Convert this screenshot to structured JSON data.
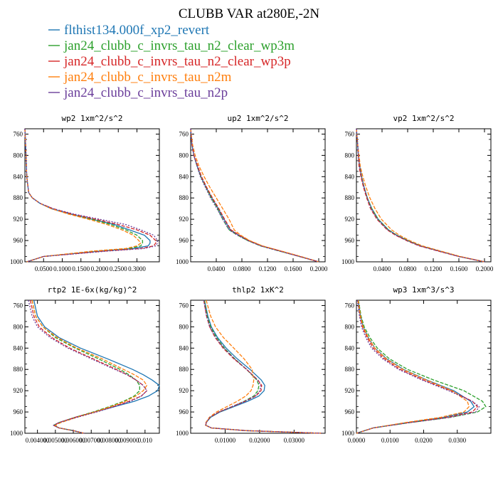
{
  "figure": {
    "title": "CLUBB VAR at280E,-2N",
    "legend": [
      {
        "label": "flthist134.000f_xp2_revert",
        "color": "#1f77b4"
      },
      {
        "label": "jan24_clubb_c_invrs_tau_n2_clear_wp3m",
        "color": "#2ca02c"
      },
      {
        "label": "jan24_clubb_c_invrs_tau_n2_clear_wp3p",
        "color": "#d62728"
      },
      {
        "label": "jan24_clubb_c_invrs_tau_n2m",
        "color": "#ff7f0e"
      },
      {
        "label": "jan24_clubb_c_invrs_tau_n2p",
        "color": "#6a3d9a"
      }
    ]
  },
  "chart_data": [
    {
      "type": "line",
      "title": "wp2   1xm^2/s^2",
      "xlim": [
        0,
        0.36
      ],
      "ylim": [
        1000,
        750
      ],
      "xticks": [
        0.05,
        0.1,
        0.15,
        0.2,
        0.25,
        0.3
      ],
      "xtick_labels": [
        "0.0500",
        "0.1000",
        "0.1500",
        "0.2000",
        "0.2500",
        "0.3000"
      ],
      "yticks": [
        760,
        800,
        840,
        880,
        920,
        960,
        1000
      ],
      "ytick_labels": [
        "760",
        "800",
        "840",
        "880",
        "920",
        "960",
        "1000"
      ],
      "y": [
        750,
        800,
        840,
        870,
        880,
        890,
        900,
        910,
        920,
        930,
        940,
        950,
        960,
        965,
        970,
        975,
        980,
        990,
        1000
      ],
      "series": [
        {
          "values": [
            0,
            0.003,
            0.005,
            0.01,
            0.02,
            0.04,
            0.07,
            0.12,
            0.18,
            0.24,
            0.28,
            0.32,
            0.335,
            0.335,
            0.33,
            0.29,
            0.2,
            0.05,
            0.005
          ],
          "color": "#1f77b4",
          "dash": ""
        },
        {
          "values": [
            0,
            0.003,
            0.005,
            0.01,
            0.02,
            0.04,
            0.07,
            0.12,
            0.18,
            0.23,
            0.27,
            0.3,
            0.315,
            0.315,
            0.31,
            0.28,
            0.19,
            0.05,
            0.005
          ],
          "color": "#2ca02c",
          "dash": "5,2"
        },
        {
          "values": [
            0,
            0.003,
            0.005,
            0.01,
            0.02,
            0.04,
            0.075,
            0.125,
            0.19,
            0.25,
            0.3,
            0.335,
            0.35,
            0.35,
            0.345,
            0.31,
            0.21,
            0.05,
            0.005
          ],
          "color": "#d62728",
          "dash": "5,2"
        },
        {
          "values": [
            0,
            0.003,
            0.005,
            0.01,
            0.02,
            0.04,
            0.07,
            0.115,
            0.17,
            0.22,
            0.26,
            0.29,
            0.305,
            0.31,
            0.3,
            0.27,
            0.18,
            0.05,
            0.005
          ],
          "color": "#ff7f0e",
          "dash": "5,2"
        },
        {
          "values": [
            0,
            0.003,
            0.005,
            0.01,
            0.02,
            0.04,
            0.075,
            0.13,
            0.2,
            0.27,
            0.31,
            0.345,
            0.355,
            0.355,
            0.35,
            0.32,
            0.22,
            0.05,
            0.005
          ],
          "color": "#6a3d9a",
          "dash": "2,2"
        }
      ]
    },
    {
      "type": "line",
      "title": "up2   1xm^2/s^2",
      "xlim": [
        0,
        0.21
      ],
      "ylim": [
        1000,
        750
      ],
      "xticks": [
        0.04,
        0.08,
        0.12,
        0.16,
        0.2
      ],
      "xtick_labels": [
        "0.0400",
        "0.0800",
        "0.1200",
        "0.1600",
        "0.2000"
      ],
      "yticks": [
        760,
        800,
        840,
        880,
        920,
        960,
        1000
      ],
      "ytick_labels": [
        "760",
        "800",
        "840",
        "880",
        "920",
        "960",
        "1000"
      ],
      "y": [
        750,
        780,
        800,
        820,
        840,
        860,
        880,
        900,
        920,
        940,
        950,
        960,
        970,
        980,
        990,
        1000
      ],
      "series": [
        {
          "values": [
            0,
            0.002,
            0.005,
            0.01,
            0.016,
            0.024,
            0.033,
            0.043,
            0.052,
            0.062,
            0.075,
            0.09,
            0.11,
            0.14,
            0.17,
            0.2
          ],
          "color": "#1f77b4",
          "dash": ""
        },
        {
          "values": [
            0,
            0.002,
            0.005,
            0.01,
            0.016,
            0.024,
            0.032,
            0.042,
            0.05,
            0.06,
            0.073,
            0.089,
            0.109,
            0.139,
            0.17,
            0.2
          ],
          "color": "#2ca02c",
          "dash": "5,2"
        },
        {
          "values": [
            0,
            0.002,
            0.005,
            0.011,
            0.017,
            0.025,
            0.034,
            0.044,
            0.053,
            0.063,
            0.076,
            0.091,
            0.111,
            0.141,
            0.17,
            0.2
          ],
          "color": "#d62728",
          "dash": "5,2"
        },
        {
          "values": [
            0,
            0.003,
            0.007,
            0.013,
            0.021,
            0.03,
            0.04,
            0.05,
            0.06,
            0.068,
            0.078,
            0.092,
            0.112,
            0.142,
            0.172,
            0.2
          ],
          "color": "#ff7f0e",
          "dash": "5,2"
        },
        {
          "values": [
            0,
            0.002,
            0.005,
            0.01,
            0.015,
            0.023,
            0.031,
            0.041,
            0.05,
            0.06,
            0.073,
            0.089,
            0.109,
            0.139,
            0.17,
            0.2
          ],
          "color": "#6a3d9a",
          "dash": "2,2"
        }
      ]
    },
    {
      "type": "line",
      "title": "vp2   1xm^2/s^2",
      "xlim": [
        0,
        0.21
      ],
      "ylim": [
        1000,
        750
      ],
      "xticks": [
        0.04,
        0.08,
        0.12,
        0.16,
        0.2
      ],
      "xtick_labels": [
        "0.0400",
        "0.0800",
        "0.1200",
        "0.1600",
        "0.2000"
      ],
      "yticks": [
        760,
        800,
        840,
        880,
        920,
        960,
        1000
      ],
      "ytick_labels": [
        "760",
        "800",
        "840",
        "880",
        "920",
        "960",
        "1000"
      ],
      "y": [
        750,
        780,
        800,
        820,
        840,
        860,
        880,
        900,
        920,
        940,
        950,
        960,
        970,
        980,
        990,
        1000
      ],
      "series": [
        {
          "values": [
            0,
            0.002,
            0.003,
            0.005,
            0.008,
            0.012,
            0.017,
            0.024,
            0.034,
            0.05,
            0.063,
            0.08,
            0.1,
            0.13,
            0.16,
            0.2
          ],
          "color": "#1f77b4",
          "dash": ""
        },
        {
          "values": [
            0,
            0.002,
            0.003,
            0.005,
            0.008,
            0.012,
            0.017,
            0.024,
            0.034,
            0.05,
            0.063,
            0.08,
            0.1,
            0.13,
            0.16,
            0.2
          ],
          "color": "#2ca02c",
          "dash": "5,2"
        },
        {
          "values": [
            0,
            0.002,
            0.003,
            0.004,
            0.007,
            0.011,
            0.016,
            0.022,
            0.032,
            0.048,
            0.061,
            0.078,
            0.098,
            0.128,
            0.16,
            0.2
          ],
          "color": "#d62728",
          "dash": "5,2"
        },
        {
          "values": [
            0,
            0.002,
            0.004,
            0.006,
            0.01,
            0.015,
            0.021,
            0.029,
            0.039,
            0.055,
            0.067,
            0.083,
            0.103,
            0.132,
            0.162,
            0.2
          ],
          "color": "#ff7f0e",
          "dash": "5,2"
        },
        {
          "values": [
            0,
            0.002,
            0.003,
            0.005,
            0.008,
            0.012,
            0.017,
            0.023,
            0.033,
            0.049,
            0.062,
            0.079,
            0.099,
            0.129,
            0.16,
            0.2
          ],
          "color": "#6a3d9a",
          "dash": "2,2"
        }
      ]
    },
    {
      "type": "line",
      "title": "rtp2   1E-6x(kg/kg)^2",
      "xlim": [
        0.0033,
        0.0108
      ],
      "ylim": [
        1000,
        750
      ],
      "xticks": [
        0.004,
        0.005,
        0.006,
        0.007,
        0.008,
        0.009,
        0.01
      ],
      "xtick_labels": [
        "0.004000",
        "0.005000",
        "0.006000",
        "0.007000",
        "0.008000",
        "0.009000",
        "0.010"
      ],
      "yticks": [
        760,
        800,
        840,
        880,
        920,
        960,
        1000
      ],
      "ytick_labels": [
        "760",
        "800",
        "840",
        "880",
        "920",
        "960",
        "1000"
      ],
      "y": [
        750,
        780,
        800,
        820,
        840,
        860,
        880,
        890,
        900,
        910,
        920,
        930,
        940,
        950,
        960,
        970,
        980,
        985,
        990,
        995,
        1000
      ],
      "series": [
        {
          "values": [
            0.0038,
            0.004,
            0.0044,
            0.0052,
            0.0064,
            0.0079,
            0.0093,
            0.0099,
            0.0104,
            0.0108,
            0.0107,
            0.0102,
            0.0094,
            0.0083,
            0.0072,
            0.0061,
            0.0052,
            0.0049,
            0.0052,
            0.006,
            0.0066
          ],
          "color": "#1f77b4",
          "dash": ""
        },
        {
          "values": [
            0.0037,
            0.0039,
            0.0043,
            0.005,
            0.0061,
            0.0074,
            0.0086,
            0.0091,
            0.0095,
            0.0097,
            0.0097,
            0.0094,
            0.0088,
            0.008,
            0.0071,
            0.0061,
            0.0052,
            0.0049,
            0.0052,
            0.006,
            0.0066
          ],
          "color": "#2ca02c",
          "dash": "5,2"
        },
        {
          "values": [
            0.0036,
            0.0038,
            0.0041,
            0.0048,
            0.0058,
            0.0071,
            0.0084,
            0.009,
            0.0095,
            0.0099,
            0.0101,
            0.0098,
            0.0091,
            0.0082,
            0.0072,
            0.0061,
            0.0052,
            0.0049,
            0.0052,
            0.006,
            0.0066
          ],
          "color": "#d62728",
          "dash": "5,2"
        },
        {
          "values": [
            0.0037,
            0.0039,
            0.0043,
            0.0051,
            0.0062,
            0.0076,
            0.0088,
            0.0094,
            0.0099,
            0.0101,
            0.0099,
            0.0095,
            0.0089,
            0.0081,
            0.0072,
            0.0062,
            0.0053,
            0.005,
            0.0052,
            0.006,
            0.0066
          ],
          "color": "#ff7f0e",
          "dash": "5,2"
        },
        {
          "values": [
            0.0035,
            0.0037,
            0.004,
            0.0047,
            0.0057,
            0.007,
            0.0083,
            0.009,
            0.0095,
            0.0099,
            0.0101,
            0.0098,
            0.0092,
            0.0083,
            0.0073,
            0.0062,
            0.0052,
            0.0049,
            0.0052,
            0.006,
            0.0066
          ],
          "color": "#6a3d9a",
          "dash": "2,2"
        }
      ]
    },
    {
      "type": "line",
      "title": "thlp2   1xK^2",
      "xlim": [
        0,
        0.039
      ],
      "ylim": [
        1000,
        750
      ],
      "xticks": [
        0.01,
        0.02,
        0.03
      ],
      "xtick_labels": [
        "0.01000",
        "0.02000",
        "0.03000"
      ],
      "yticks": [
        760,
        800,
        840,
        880,
        920,
        960,
        1000
      ],
      "ytick_labels": [
        "760",
        "800",
        "840",
        "880",
        "920",
        "960",
        "1000"
      ],
      "y": [
        750,
        780,
        800,
        820,
        840,
        860,
        880,
        900,
        910,
        920,
        930,
        940,
        950,
        960,
        970,
        980,
        985,
        990,
        995,
        1000
      ],
      "series": [
        {
          "values": [
            0.004,
            0.005,
            0.006,
            0.0078,
            0.0103,
            0.0135,
            0.0172,
            0.0205,
            0.0215,
            0.0213,
            0.0198,
            0.0165,
            0.0125,
            0.0085,
            0.0058,
            0.0045,
            0.0044,
            0.006,
            0.016,
            0.038
          ],
          "color": "#1f77b4",
          "dash": ""
        },
        {
          "values": [
            0.004,
            0.0048,
            0.0058,
            0.0075,
            0.0098,
            0.0128,
            0.0162,
            0.0192,
            0.0198,
            0.0195,
            0.0183,
            0.0155,
            0.012,
            0.0083,
            0.0057,
            0.0045,
            0.0044,
            0.006,
            0.016,
            0.038
          ],
          "color": "#2ca02c",
          "dash": "5,2"
        },
        {
          "values": [
            0.0038,
            0.0046,
            0.0055,
            0.0071,
            0.0094,
            0.0125,
            0.0162,
            0.0195,
            0.0206,
            0.0204,
            0.0189,
            0.0158,
            0.012,
            0.0082,
            0.0056,
            0.0045,
            0.0044,
            0.006,
            0.016,
            0.038
          ],
          "color": "#d62728",
          "dash": "5,2"
        },
        {
          "values": [
            0.0045,
            0.0058,
            0.0072,
            0.0095,
            0.0125,
            0.0155,
            0.0178,
            0.0183,
            0.0181,
            0.0175,
            0.016,
            0.0135,
            0.0105,
            0.0075,
            0.0054,
            0.0044,
            0.0043,
            0.006,
            0.016,
            0.038
          ],
          "color": "#ff7f0e",
          "dash": "5,2"
        },
        {
          "values": [
            0.0038,
            0.0046,
            0.0055,
            0.0072,
            0.0096,
            0.0127,
            0.0163,
            0.0194,
            0.0203,
            0.0201,
            0.0187,
            0.0157,
            0.0119,
            0.0082,
            0.0056,
            0.0045,
            0.0044,
            0.006,
            0.016,
            0.038
          ],
          "color": "#6a3d9a",
          "dash": "2,2"
        }
      ]
    },
    {
      "type": "line",
      "title": "wp3   1xm^3/s^3",
      "xlim": [
        0,
        0.04
      ],
      "ylim": [
        1000,
        750
      ],
      "xticks": [
        0,
        0.01,
        0.02,
        0.03
      ],
      "xtick_labels": [
        "0.0000",
        "0.0100",
        "0.0200",
        "0.0300"
      ],
      "yticks": [
        760,
        800,
        840,
        880,
        920,
        960,
        1000
      ],
      "ytick_labels": [
        "760",
        "800",
        "840",
        "880",
        "920",
        "960",
        "1000"
      ],
      "y": [
        750,
        780,
        800,
        820,
        840,
        860,
        880,
        900,
        920,
        940,
        950,
        960,
        970,
        980,
        990,
        1000
      ],
      "series": [
        {
          "values": [
            0.0005,
            0.0012,
            0.002,
            0.0035,
            0.0055,
            0.009,
            0.014,
            0.021,
            0.029,
            0.034,
            0.035,
            0.033,
            0.026,
            0.015,
            0.005,
            0
          ],
          "color": "#1f77b4",
          "dash": ""
        },
        {
          "values": [
            0.0006,
            0.0014,
            0.0023,
            0.004,
            0.0062,
            0.0098,
            0.0152,
            0.023,
            0.032,
            0.0375,
            0.0385,
            0.036,
            0.028,
            0.016,
            0.005,
            0
          ],
          "color": "#2ca02c",
          "dash": "5,2"
        },
        {
          "values": [
            0.0004,
            0.0011,
            0.0018,
            0.0032,
            0.005,
            0.0083,
            0.013,
            0.02,
            0.028,
            0.0345,
            0.036,
            0.0345,
            0.027,
            0.0155,
            0.005,
            0
          ],
          "color": "#d62728",
          "dash": "5,2"
        },
        {
          "values": [
            0.0005,
            0.0012,
            0.002,
            0.0035,
            0.0055,
            0.0088,
            0.0138,
            0.0208,
            0.0285,
            0.033,
            0.0335,
            0.032,
            0.025,
            0.0145,
            0.005,
            0
          ],
          "color": "#ff7f0e",
          "dash": "5,2"
        },
        {
          "values": [
            0.0003,
            0.0009,
            0.0015,
            0.0028,
            0.0045,
            0.0078,
            0.0125,
            0.0195,
            0.0275,
            0.0345,
            0.0365,
            0.0355,
            0.028,
            0.016,
            0.005,
            0
          ],
          "color": "#6a3d9a",
          "dash": "2,2"
        }
      ]
    }
  ]
}
